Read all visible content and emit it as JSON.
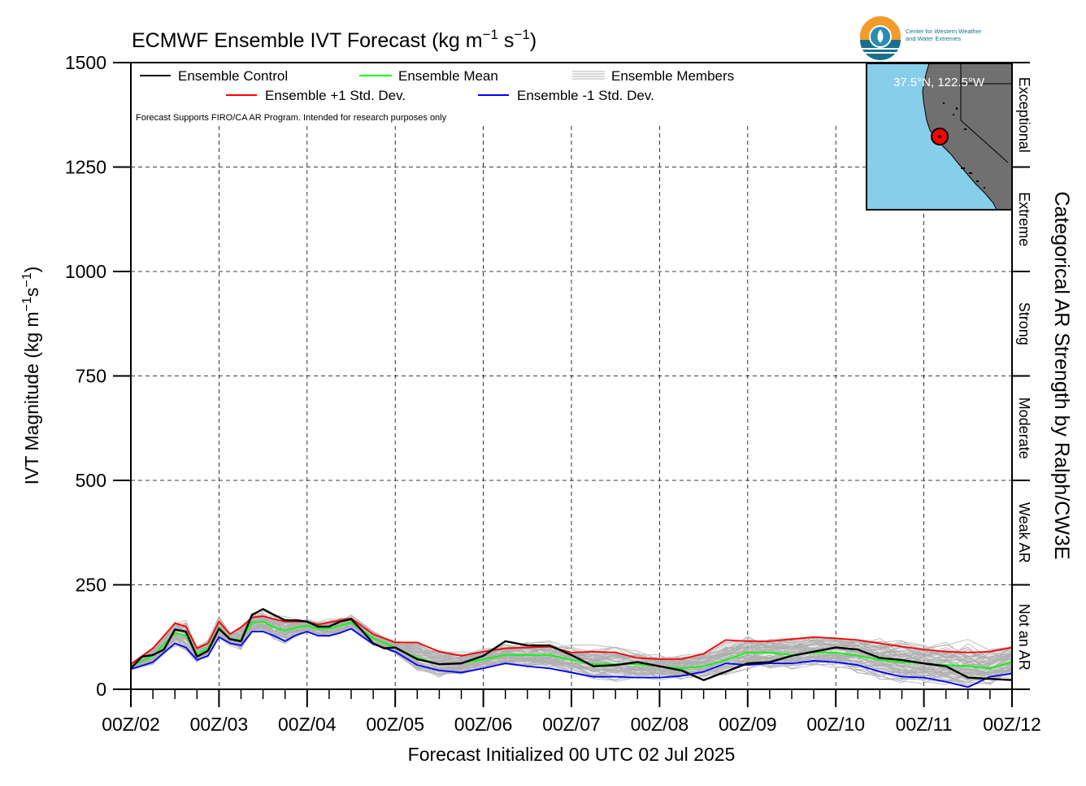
{
  "header": {
    "title": "ECMWF Ensemble IVT Forecast (kg m",
    "title_sup1": "−1",
    "title_mid": " s",
    "title_sup2": "−1",
    "title_end": ")"
  },
  "logo": {
    "line1": "Center for Western Weather",
    "line2": "and Water Extremes"
  },
  "inset_map": {
    "location_label": "37.5°N, 122.5°W",
    "ocean_color": "#87ceeb",
    "land_color": "#707070",
    "marker_color": "#ff0000"
  },
  "legend": {
    "control": "Ensemble Control",
    "mean": "Ensemble Mean",
    "members": "Ensemble Members",
    "plus": "Ensemble +1 Std. Dev.",
    "minus": "Ensemble -1 Std. Dev.",
    "disclaimer": "Forecast Supports FIRO/CA AR Program. Intended for research purposes only"
  },
  "chart_data": {
    "type": "line",
    "title": "ECMWF Ensemble IVT Forecast (kg m−1 s−1)",
    "xlabel": "Forecast Initialized 00 UTC 02 Jul 2025",
    "ylabel": "IVT Magnitude (kg m−1s−1)",
    "right_label": "Categorical AR Strength by Ralph/CW3E",
    "ylim": [
      0,
      1500
    ],
    "yticks": [
      0,
      250,
      500,
      750,
      1000,
      1250,
      1500
    ],
    "xlim": [
      0,
      240
    ],
    "x_unit": "forecast hours",
    "xtick_labels": [
      "00Z/02",
      "00Z/03",
      "00Z/04",
      "00Z/05",
      "00Z/06",
      "00Z/07",
      "00Z/08",
      "00Z/09",
      "00Z/10",
      "00Z/11",
      "00Z/12"
    ],
    "grid": true,
    "legend_position": "top",
    "categories_right": [
      {
        "label": "Not an AR",
        "range": [
          0,
          250
        ]
      },
      {
        "label": "Weak AR",
        "range": [
          250,
          500
        ]
      },
      {
        "label": "Moderate",
        "range": [
          500,
          750
        ]
      },
      {
        "label": "Strong",
        "range": [
          750,
          1000
        ]
      },
      {
        "label": "Extreme",
        "range": [
          1000,
          1250
        ]
      },
      {
        "label": "Exceptional",
        "range": [
          1250,
          1500
        ]
      }
    ],
    "series": [
      {
        "name": "Ensemble Control",
        "color": "#000000",
        "x": [
          0,
          3,
          6,
          9,
          12,
          15,
          18,
          21,
          24,
          27,
          30,
          33,
          36,
          39,
          42,
          45,
          48,
          51,
          54,
          57,
          60,
          63,
          66,
          69,
          72,
          78,
          84,
          90,
          96,
          102,
          108,
          114,
          120,
          126,
          132,
          138,
          144,
          150,
          156,
          162,
          168,
          174,
          180,
          186,
          192,
          198,
          204,
          210,
          216,
          222,
          228,
          234,
          240
        ],
        "values": [
          50,
          78,
          82,
          95,
          143,
          138,
          78,
          92,
          145,
          120,
          115,
          178,
          192,
          178,
          165,
          165,
          162,
          150,
          150,
          162,
          168,
          140,
          110,
          98,
          100,
          72,
          60,
          62,
          80,
          115,
          105,
          105,
          82,
          55,
          58,
          65,
          55,
          45,
          22,
          42,
          62,
          65,
          80,
          90,
          100,
          95,
          75,
          70,
          62,
          55,
          28,
          25,
          22
        ]
      },
      {
        "name": "Ensemble Mean",
        "color": "#00ff00",
        "x": [
          0,
          6,
          12,
          15,
          18,
          21,
          24,
          27,
          30,
          33,
          36,
          39,
          42,
          45,
          48,
          51,
          54,
          57,
          60,
          66,
          72,
          78,
          84,
          90,
          96,
          102,
          108,
          114,
          120,
          126,
          132,
          138,
          144,
          150,
          156,
          162,
          168,
          174,
          180,
          186,
          192,
          198,
          204,
          210,
          216,
          222,
          228,
          234,
          240
        ],
        "values": [
          55,
          80,
          135,
          128,
          85,
          98,
          148,
          120,
          118,
          160,
          162,
          148,
          140,
          148,
          152,
          145,
          145,
          152,
          160,
          122,
          100,
          75,
          60,
          62,
          72,
          82,
          82,
          82,
          70,
          60,
          60,
          60,
          55,
          50,
          55,
          70,
          88,
          88,
          82,
          88,
          88,
          80,
          70,
          65,
          62,
          58,
          55,
          50,
          65
        ]
      },
      {
        "name": "Ensemble +1 Std. Dev.",
        "color": "#ff0000",
        "x": [
          0,
          6,
          12,
          15,
          18,
          21,
          24,
          27,
          30,
          33,
          36,
          39,
          42,
          45,
          48,
          51,
          54,
          57,
          60,
          66,
          72,
          78,
          84,
          90,
          96,
          102,
          108,
          114,
          120,
          126,
          132,
          138,
          144,
          150,
          156,
          162,
          168,
          174,
          180,
          186,
          192,
          198,
          204,
          210,
          216,
          222,
          228,
          234,
          240
        ],
        "values": [
          60,
          98,
          158,
          150,
          98,
          110,
          162,
          132,
          148,
          172,
          175,
          168,
          162,
          162,
          162,
          155,
          160,
          165,
          170,
          132,
          112,
          112,
          90,
          80,
          90,
          98,
          100,
          102,
          88,
          90,
          88,
          75,
          72,
          72,
          85,
          118,
          115,
          115,
          120,
          125,
          122,
          118,
          110,
          102,
          95,
          90,
          88,
          90,
          100
        ]
      },
      {
        "name": "Ensemble -1 Std. Dev.",
        "color": "#0000ff",
        "x": [
          0,
          6,
          12,
          15,
          18,
          21,
          24,
          27,
          30,
          33,
          36,
          39,
          42,
          45,
          48,
          51,
          54,
          57,
          60,
          66,
          72,
          78,
          84,
          90,
          96,
          102,
          108,
          114,
          120,
          126,
          132,
          138,
          144,
          150,
          156,
          162,
          168,
          174,
          180,
          186,
          192,
          198,
          204,
          210,
          216,
          222,
          228,
          234,
          240
        ],
        "values": [
          48,
          65,
          110,
          100,
          70,
          80,
          125,
          110,
          105,
          138,
          138,
          128,
          115,
          130,
          138,
          128,
          128,
          135,
          145,
          108,
          90,
          58,
          45,
          40,
          50,
          62,
          55,
          50,
          40,
          30,
          30,
          28,
          28,
          32,
          42,
          62,
          58,
          62,
          62,
          68,
          65,
          58,
          42,
          30,
          28,
          18,
          5,
          30,
          38
        ]
      }
    ]
  }
}
